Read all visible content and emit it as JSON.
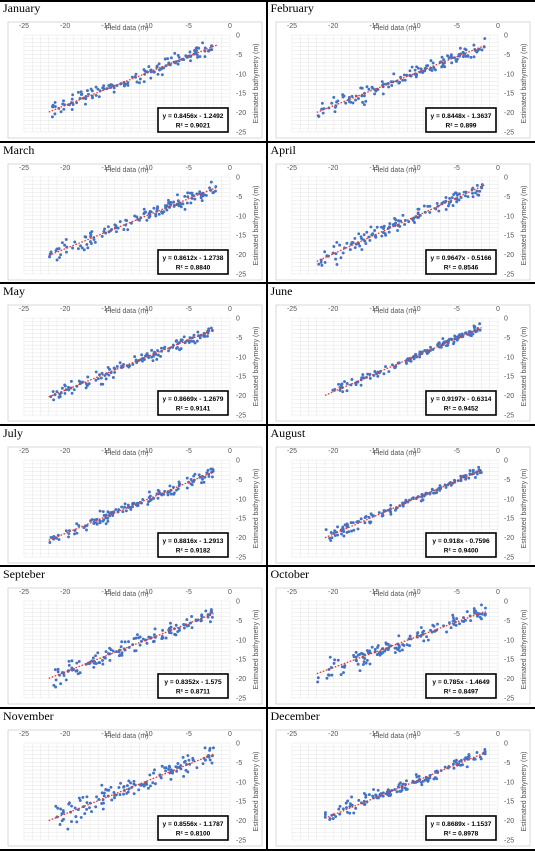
{
  "common": {
    "xlabel": "Field data (m)",
    "ylabel": "Estimated bathymetry (m)",
    "x_ticks": [
      "-25",
      "-20",
      "-15",
      "-10",
      "-5",
      "0"
    ],
    "y_ticks": [
      "0",
      "-5",
      "-10",
      "-15",
      "-20",
      "-25"
    ],
    "xlim": [
      -25,
      0
    ],
    "ylim": [
      -25,
      0
    ],
    "point_color": "#4472c4",
    "trend_color": "#e8382e"
  },
  "chart_data": [
    {
      "type": "scatter",
      "title": "January",
      "equation": "y = 0.8456x - 1.2492",
      "r2": "R² = 0.9021",
      "slope": 0.8456,
      "intercept": -1.2492,
      "r2_value": 0.9021,
      "x_range": [
        -22,
        -1.5
      ]
    },
    {
      "type": "scatter",
      "title": "February",
      "equation": "y = 0.8448x - 1.3637",
      "r2": "R² = 0.899",
      "slope": 0.8448,
      "intercept": -1.3637,
      "r2_value": 0.899,
      "x_range": [
        -22,
        -1.5
      ]
    },
    {
      "type": "scatter",
      "title": "March",
      "equation": "y = 0.8612x - 1.2738",
      "r2": "R² = 0.8840",
      "slope": 0.8612,
      "intercept": -1.2738,
      "r2_value": 0.884,
      "x_range": [
        -22,
        -1.5
      ]
    },
    {
      "type": "scatter",
      "title": "April",
      "equation": "y = 0.9647x - 0.5166",
      "r2": "R² = 0.8546",
      "slope": 0.9647,
      "intercept": -0.5166,
      "r2_value": 0.8546,
      "x_range": [
        -22,
        -1.5
      ]
    },
    {
      "type": "scatter",
      "title": "May",
      "equation": "y = 0.8669x - 1.2679",
      "r2": "R² = 0.9141",
      "slope": 0.8669,
      "intercept": -1.2679,
      "r2_value": 0.9141,
      "x_range": [
        -22,
        -2
      ]
    },
    {
      "type": "scatter",
      "title": "June",
      "equation": "y = 0.9197x - 0.6314",
      "r2": "R² = 0.9452",
      "slope": 0.9197,
      "intercept": -0.6314,
      "r2_value": 0.9452,
      "x_range": [
        -21,
        -2
      ]
    },
    {
      "type": "scatter",
      "title": "July",
      "equation": "y = 0.8816x - 1.2913",
      "r2": "R² = 0.9182",
      "slope": 0.8816,
      "intercept": -1.2913,
      "r2_value": 0.9182,
      "x_range": [
        -22,
        -2
      ]
    },
    {
      "type": "scatter",
      "title": "August",
      "equation": "y = 0.918x - 0.7596",
      "r2": "R² = 0.9400",
      "slope": 0.918,
      "intercept": -0.7596,
      "r2_value": 0.94,
      "x_range": [
        -21,
        -2
      ]
    },
    {
      "type": "scatter",
      "title": "Septeber",
      "equation": "y = 0.8352x - 1.575",
      "r2": "R² = 0.8711",
      "slope": 0.8352,
      "intercept": -1.575,
      "r2_value": 0.8711,
      "x_range": [
        -22,
        -2
      ]
    },
    {
      "type": "scatter",
      "title": "October",
      "equation": "y = 0.785x - 1.4649",
      "r2": "R² = 0.8497",
      "slope": 0.785,
      "intercept": -1.4649,
      "r2_value": 0.8497,
      "x_range": [
        -22,
        -1.5
      ]
    },
    {
      "type": "scatter",
      "title": "November",
      "equation": "y = 0.8556x - 1.1787",
      "r2": "R² = 0.8100",
      "slope": 0.8556,
      "intercept": -1.1787,
      "r2_value": 0.81,
      "x_range": [
        -22,
        -2
      ]
    },
    {
      "type": "scatter",
      "title": "December",
      "equation": "y = 0.8689x - 1.1537",
      "r2": "R² = 0.8978",
      "slope": 0.8689,
      "intercept": -1.1537,
      "r2_value": 0.8978,
      "x_range": [
        -21,
        -1.5
      ]
    }
  ]
}
